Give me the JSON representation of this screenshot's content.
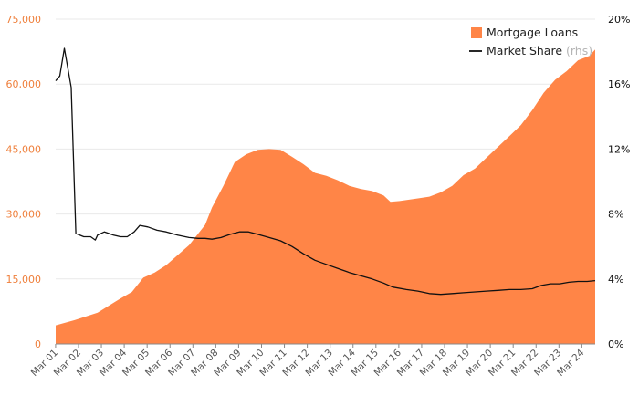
{
  "chart_data": {
    "type": "area+line",
    "x_labels": [
      "Mar 01",
      "Mar 02",
      "Mar 03",
      "Mar 04",
      "Mar 05",
      "Mar 06",
      "Mar 07",
      "Mar 08",
      "Mar 09",
      "Mar 10",
      "Mar 11",
      "Mar 12",
      "Mar 13",
      "Mar 14",
      "Mar 15",
      "Mar 16",
      "Mar 17",
      "Mar 18",
      "Mar 19",
      "Mar 20",
      "Mar 21",
      "Mar 22",
      "Mar 23",
      "Mar 24"
    ],
    "x_range": [
      2001.17,
      2024.75
    ],
    "y_left": {
      "ticks": [
        "0",
        "15,000",
        "30,000",
        "45,000",
        "60,000",
        "75,000"
      ],
      "ylim": [
        0,
        75000
      ],
      "color": "#ef7f3b"
    },
    "y_right": {
      "ticks": [
        "0%",
        "4%",
        "8%",
        "12%",
        "16%",
        "20%"
      ],
      "ylim": [
        0,
        20
      ],
      "color": "#111111"
    },
    "grid": true,
    "legend_position": "top-right",
    "series": [
      {
        "name": "Mortgage Loans",
        "kind": "area",
        "color": "#ff8547",
        "points": [
          [
            2001.17,
            4300
          ],
          [
            2002.0,
            5500
          ],
          [
            2003.0,
            7200
          ],
          [
            2004.0,
            10500
          ],
          [
            2004.5,
            12000
          ],
          [
            2005.0,
            15300
          ],
          [
            2005.5,
            16500
          ],
          [
            2006.0,
            18200
          ],
          [
            2007.0,
            22800
          ],
          [
            2007.7,
            27500
          ],
          [
            2008.0,
            31500
          ],
          [
            2008.5,
            36500
          ],
          [
            2009.0,
            42000
          ],
          [
            2009.5,
            43800
          ],
          [
            2010.0,
            44800
          ],
          [
            2010.5,
            45000
          ],
          [
            2011.0,
            44800
          ],
          [
            2011.5,
            43200
          ],
          [
            2012.0,
            41500
          ],
          [
            2012.5,
            39500
          ],
          [
            2013.0,
            38800
          ],
          [
            2013.5,
            37800
          ],
          [
            2014.0,
            36500
          ],
          [
            2014.5,
            35800
          ],
          [
            2015.0,
            35300
          ],
          [
            2015.5,
            34300
          ],
          [
            2015.8,
            32800
          ],
          [
            2016.2,
            33000
          ],
          [
            2017.0,
            33600
          ],
          [
            2017.5,
            34000
          ],
          [
            2018.0,
            35000
          ],
          [
            2018.5,
            36500
          ],
          [
            2019.0,
            39000
          ],
          [
            2019.5,
            40500
          ],
          [
            2020.0,
            43000
          ],
          [
            2020.5,
            45500
          ],
          [
            2021.0,
            48000
          ],
          [
            2021.5,
            50500
          ],
          [
            2022.0,
            54000
          ],
          [
            2022.5,
            58000
          ],
          [
            2023.0,
            61000
          ],
          [
            2023.5,
            63000
          ],
          [
            2024.0,
            65500
          ],
          [
            2024.5,
            66500
          ],
          [
            2024.75,
            68000
          ]
        ]
      },
      {
        "name": "Market Share",
        "name_suffix": "(rhs)",
        "kind": "line",
        "axis": "right",
        "color": "#111111",
        "points": [
          [
            2001.17,
            16.2
          ],
          [
            2001.35,
            16.5
          ],
          [
            2001.55,
            18.2
          ],
          [
            2001.85,
            15.8
          ],
          [
            2002.05,
            6.8
          ],
          [
            2002.4,
            6.6
          ],
          [
            2002.7,
            6.6
          ],
          [
            2002.9,
            6.4
          ],
          [
            2003.0,
            6.7
          ],
          [
            2003.3,
            6.9
          ],
          [
            2003.7,
            6.7
          ],
          [
            2004.0,
            6.6
          ],
          [
            2004.3,
            6.6
          ],
          [
            2004.6,
            6.9
          ],
          [
            2004.85,
            7.3
          ],
          [
            2005.2,
            7.2
          ],
          [
            2005.6,
            7.0
          ],
          [
            2006.0,
            6.9
          ],
          [
            2006.5,
            6.7
          ],
          [
            2007.0,
            6.55
          ],
          [
            2007.4,
            6.5
          ],
          [
            2007.7,
            6.5
          ],
          [
            2008.0,
            6.45
          ],
          [
            2008.4,
            6.55
          ],
          [
            2008.8,
            6.75
          ],
          [
            2009.2,
            6.9
          ],
          [
            2009.6,
            6.9
          ],
          [
            2010.0,
            6.75
          ],
          [
            2010.5,
            6.55
          ],
          [
            2011.0,
            6.35
          ],
          [
            2011.5,
            6.0
          ],
          [
            2012.0,
            5.55
          ],
          [
            2012.5,
            5.15
          ],
          [
            2013.0,
            4.9
          ],
          [
            2013.5,
            4.65
          ],
          [
            2014.0,
            4.4
          ],
          [
            2014.5,
            4.2
          ],
          [
            2015.0,
            4.0
          ],
          [
            2015.5,
            3.75
          ],
          [
            2015.9,
            3.5
          ],
          [
            2016.5,
            3.35
          ],
          [
            2017.0,
            3.25
          ],
          [
            2017.5,
            3.1
          ],
          [
            2018.0,
            3.05
          ],
          [
            2018.5,
            3.1
          ],
          [
            2019.0,
            3.15
          ],
          [
            2019.5,
            3.2
          ],
          [
            2020.0,
            3.25
          ],
          [
            2020.5,
            3.3
          ],
          [
            2021.0,
            3.35
          ],
          [
            2021.5,
            3.35
          ],
          [
            2022.0,
            3.4
          ],
          [
            2022.4,
            3.6
          ],
          [
            2022.8,
            3.7
          ],
          [
            2023.2,
            3.7
          ],
          [
            2023.6,
            3.8
          ],
          [
            2024.0,
            3.85
          ],
          [
            2024.4,
            3.85
          ],
          [
            2024.75,
            3.9
          ]
        ]
      }
    ]
  }
}
